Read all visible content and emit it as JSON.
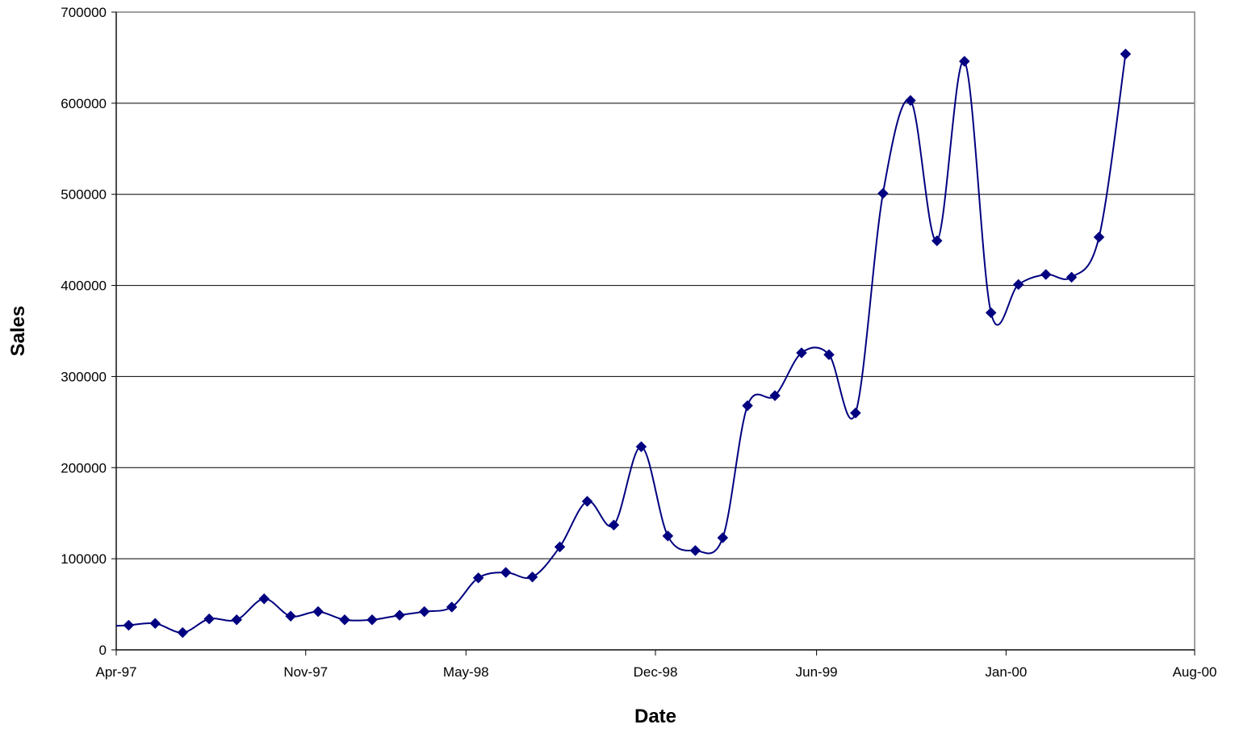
{
  "chart_data": {
    "type": "line",
    "title": "",
    "xlabel": "Date",
    "ylabel": "Sales",
    "x_axis": {
      "kind": "date",
      "min": "1997-04-01",
      "max": "2000-08-01",
      "ticks": [
        {
          "date": "1997-04-01",
          "label": "Apr-97"
        },
        {
          "date": "1997-11-01",
          "label": "Nov-97"
        },
        {
          "date": "1998-05-01",
          "label": "May-98"
        },
        {
          "date": "1998-12-01",
          "label": "Dec-98"
        },
        {
          "date": "1999-06-01",
          "label": "Jun-99"
        },
        {
          "date": "2000-01-01",
          "label": "Jan-00"
        },
        {
          "date": "2000-08-01",
          "label": "Aug-00"
        }
      ]
    },
    "y_axis": {
      "min": 0,
      "max": 700000,
      "ticks": [
        0,
        100000,
        200000,
        300000,
        400000,
        500000,
        600000,
        700000
      ],
      "tick_labels": [
        "0",
        "100000",
        "200000",
        "300000",
        "400000",
        "500000",
        "600000",
        "700000"
      ]
    },
    "grid": "horizontal",
    "legend": "none",
    "line_color": "#000080",
    "marker": "diamond",
    "smoothed": true,
    "series": [
      {
        "points": [
          {
            "x": "1997-04-15",
            "y": 27000
          },
          {
            "x": "1997-05-15",
            "y": 29000
          },
          {
            "x": "1997-06-15",
            "y": 19000
          },
          {
            "x": "1997-07-15",
            "y": 34000
          },
          {
            "x": "1997-08-15",
            "y": 33000
          },
          {
            "x": "1997-09-15",
            "y": 56000
          },
          {
            "x": "1997-10-15",
            "y": 37000
          },
          {
            "x": "1997-11-15",
            "y": 42000
          },
          {
            "x": "1997-12-15",
            "y": 33000
          },
          {
            "x": "1998-01-15",
            "y": 33000
          },
          {
            "x": "1998-02-15",
            "y": 38000
          },
          {
            "x": "1998-03-15",
            "y": 42000
          },
          {
            "x": "1998-04-15",
            "y": 47000
          },
          {
            "x": "1998-05-15",
            "y": 79000
          },
          {
            "x": "1998-06-15",
            "y": 85000
          },
          {
            "x": "1998-07-15",
            "y": 80000
          },
          {
            "x": "1998-08-15",
            "y": 113000
          },
          {
            "x": "1998-09-15",
            "y": 163000
          },
          {
            "x": "1998-10-15",
            "y": 137000
          },
          {
            "x": "1998-11-15",
            "y": 223000
          },
          {
            "x": "1998-12-15",
            "y": 125000
          },
          {
            "x": "1999-01-15",
            "y": 109000
          },
          {
            "x": "1999-02-15",
            "y": 123000
          },
          {
            "x": "1999-03-15",
            "y": 268000
          },
          {
            "x": "1999-04-15",
            "y": 279000
          },
          {
            "x": "1999-05-15",
            "y": 326000
          },
          {
            "x": "1999-06-15",
            "y": 324000
          },
          {
            "x": "1999-07-15",
            "y": 260000
          },
          {
            "x": "1999-08-15",
            "y": 501000
          },
          {
            "x": "1999-09-15",
            "y": 603000
          },
          {
            "x": "1999-10-15",
            "y": 449000
          },
          {
            "x": "1999-11-15",
            "y": 646000
          },
          {
            "x": "1999-12-15",
            "y": 370000
          },
          {
            "x": "2000-01-15",
            "y": 401000
          },
          {
            "x": "2000-02-15",
            "y": 412000
          },
          {
            "x": "2000-03-15",
            "y": 409000
          },
          {
            "x": "2000-04-15",
            "y": 453000
          },
          {
            "x": "2000-05-15",
            "y": 654000
          }
        ]
      }
    ]
  }
}
